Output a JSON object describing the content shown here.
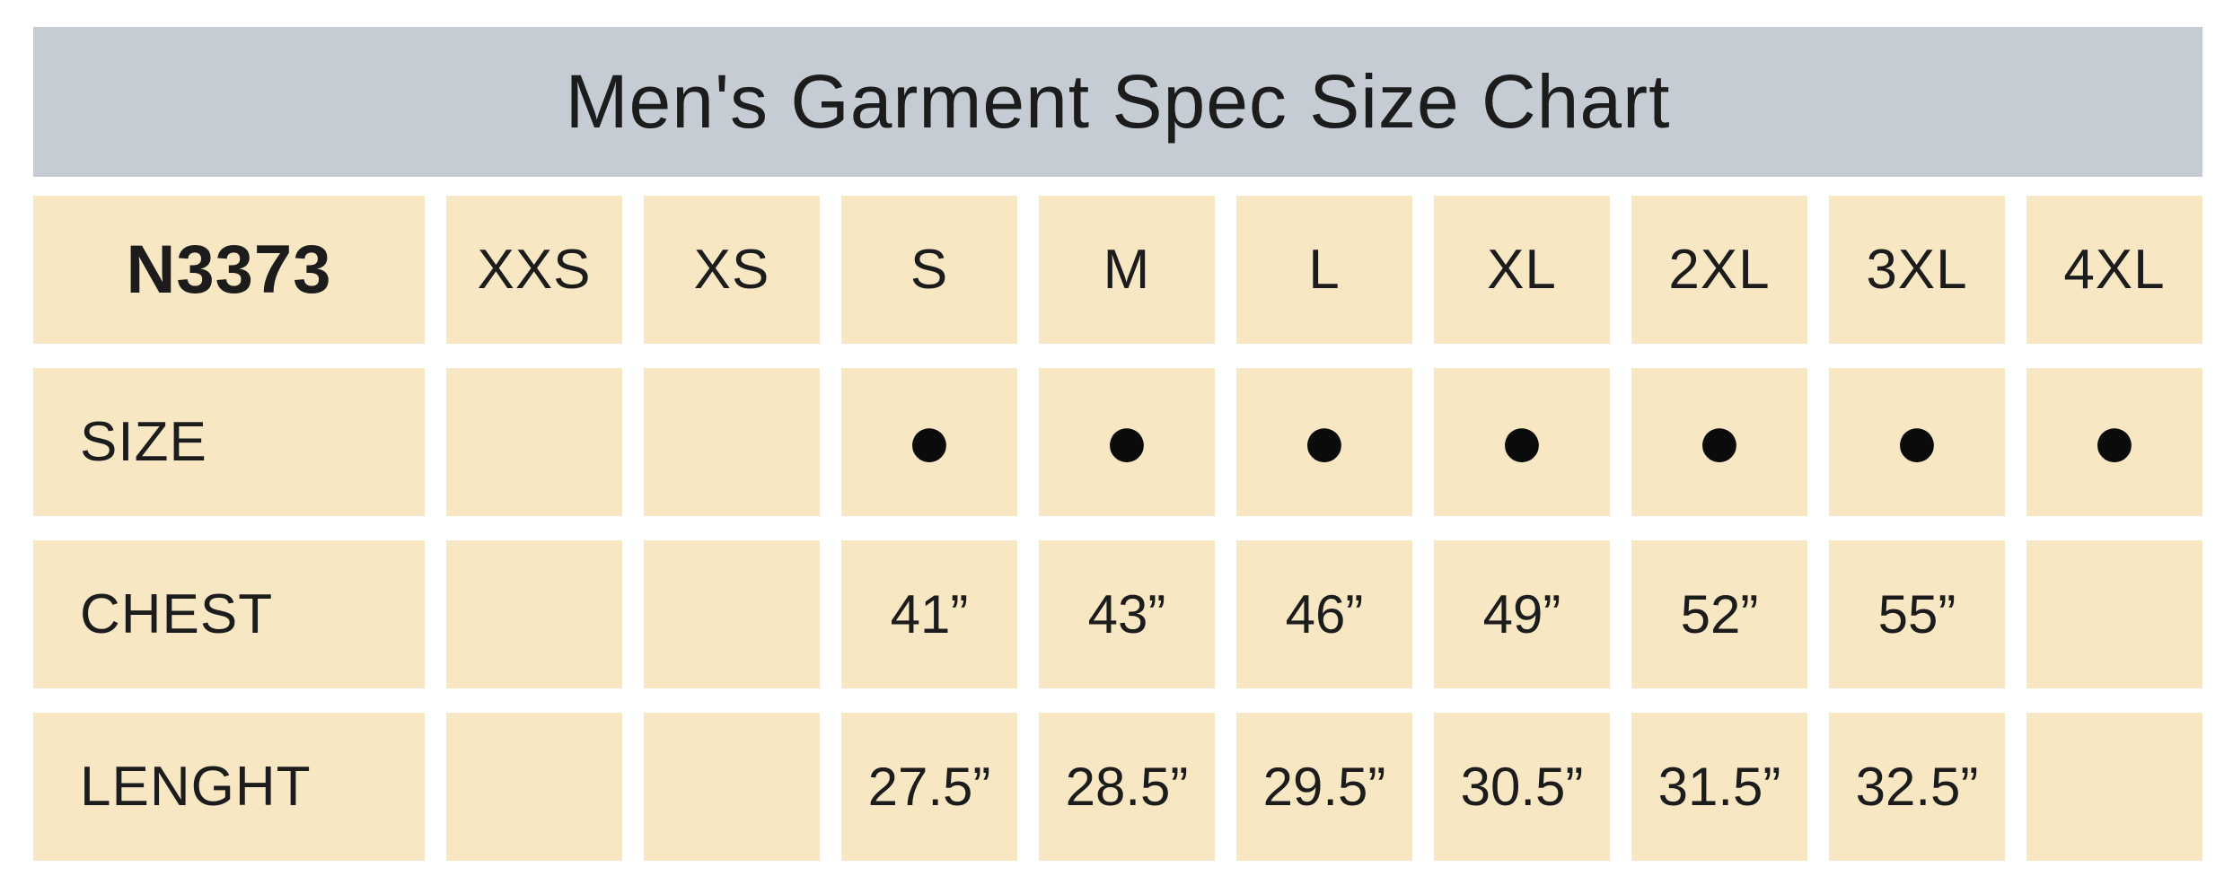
{
  "page": {
    "title": "Men's Garment Spec Size Chart"
  },
  "colors": {
    "title_bar_bg": "#c5ccd4",
    "cell_bg": "#f7e8c3",
    "text": "#1c1c1c",
    "dot": "#0b0b0b",
    "page_bg": "#ffffff"
  },
  "table": {
    "product_code": "N3373",
    "size_columns": [
      "XXS",
      "XS",
      "S",
      "M",
      "L",
      "XL",
      "2XL",
      "3XL",
      "4XL"
    ],
    "rows": [
      {
        "label": "SIZE",
        "values": [
          "",
          "",
          "●",
          "●",
          "●",
          "●",
          "●",
          "●",
          "●"
        ]
      },
      {
        "label": "CHEST",
        "values": [
          "",
          "",
          "41”",
          "43”",
          "46”",
          "49”",
          "52”",
          "55”",
          ""
        ]
      },
      {
        "label": "LENGHT",
        "values": [
          "",
          "",
          "27.5”",
          "28.5”",
          "29.5”",
          "30.5”",
          "31.5”",
          "32.5”",
          ""
        ]
      }
    ]
  },
  "chart_data": {
    "type": "table",
    "title": "Men's Garment Spec Size Chart",
    "columns": [
      "N3373",
      "XXS",
      "XS",
      "S",
      "M",
      "L",
      "XL",
      "2XL",
      "3XL",
      "4XL"
    ],
    "rows": [
      [
        "SIZE",
        "",
        "",
        "●",
        "●",
        "●",
        "●",
        "●",
        "●",
        "●"
      ],
      [
        "CHEST",
        "",
        "",
        "41”",
        "43”",
        "46”",
        "49”",
        "52”",
        "55”",
        ""
      ],
      [
        "LENGHT",
        "",
        "",
        "27.5”",
        "28.5”",
        "29.5”",
        "30.5”",
        "31.5”",
        "32.5”",
        ""
      ]
    ]
  }
}
